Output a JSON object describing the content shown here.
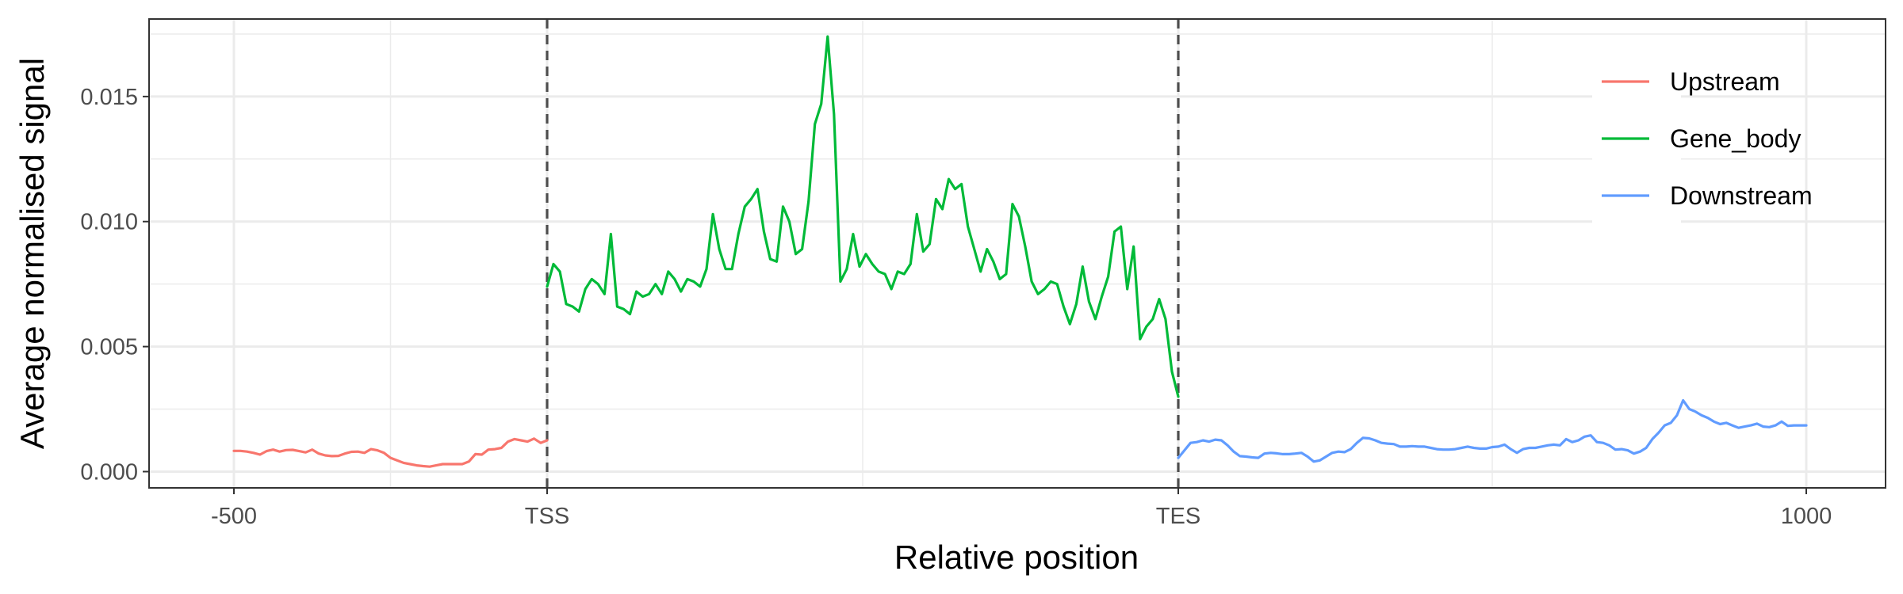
{
  "chart_data": {
    "type": "line",
    "title": "",
    "xlabel": "Relative position",
    "ylabel": "Average normalised signal",
    "x_ticks": [
      {
        "value": -500,
        "label": "-500"
      },
      {
        "value": 0,
        "label": "TSS"
      },
      {
        "value": 1,
        "label": "TES"
      },
      {
        "value": 1000,
        "label": "1000"
      }
    ],
    "y_ticks": [
      {
        "value": 0,
        "label": "0.000"
      },
      {
        "value": 0.005,
        "label": "0.005"
      },
      {
        "value": 0.01,
        "label": "0.010"
      },
      {
        "value": 0.015,
        "label": "0.015"
      }
    ],
    "ylim": [
      -0.00065,
      0.0181
    ],
    "grid": true,
    "legend_position": "top-right",
    "reference_lines": [
      {
        "label": "TSS",
        "style": "dashed"
      },
      {
        "label": "TES",
        "style": "dashed"
      }
    ],
    "series": [
      {
        "name": "Upstream",
        "color": "#F8766D",
        "segment": "upstream",
        "x_range": [
          -500,
          0
        ],
        "values": [
          0.00083,
          0.00083,
          0.0008,
          0.00075,
          0.00068,
          0.00082,
          0.00088,
          0.0008,
          0.00086,
          0.00087,
          0.00082,
          0.00077,
          0.00088,
          0.00072,
          0.00065,
          0.00062,
          0.00063,
          0.00072,
          0.00079,
          0.0008,
          0.00075,
          0.0009,
          0.00085,
          0.00075,
          0.00055,
          0.00045,
          0.00035,
          0.0003,
          0.00025,
          0.00022,
          0.0002,
          0.00025,
          0.0003,
          0.0003,
          0.0003,
          0.0003,
          0.0004,
          0.0007,
          0.00068,
          0.00088,
          0.0009,
          0.00095,
          0.0012,
          0.0013,
          0.00125,
          0.0012,
          0.00132,
          0.00115,
          0.00125
        ]
      },
      {
        "name": "Gene_body",
        "color": "#00BA38",
        "segment": "gene_body",
        "x_range": [
          0,
          1
        ],
        "values": [
          0.0074,
          0.0083,
          0.008,
          0.0067,
          0.0066,
          0.0064,
          0.0073,
          0.0077,
          0.0075,
          0.0071,
          0.0095,
          0.0066,
          0.0065,
          0.0063,
          0.0072,
          0.007,
          0.0071,
          0.0075,
          0.0071,
          0.008,
          0.0077,
          0.0072,
          0.0077,
          0.0076,
          0.0074,
          0.0081,
          0.0103,
          0.0089,
          0.0081,
          0.0081,
          0.0095,
          0.0106,
          0.0109,
          0.0113,
          0.0096,
          0.0085,
          0.0084,
          0.0106,
          0.01,
          0.0087,
          0.0089,
          0.0108,
          0.0139,
          0.0147,
          0.0174,
          0.0143,
          0.0076,
          0.0081,
          0.0095,
          0.0082,
          0.0087,
          0.0083,
          0.008,
          0.0079,
          0.0073,
          0.008,
          0.0079,
          0.0083,
          0.0103,
          0.0088,
          0.0091,
          0.0109,
          0.0105,
          0.0117,
          0.0113,
          0.0115,
          0.0098,
          0.0089,
          0.008,
          0.0089,
          0.0084,
          0.0077,
          0.0079,
          0.0107,
          0.0102,
          0.009,
          0.0076,
          0.0071,
          0.0073,
          0.0076,
          0.0075,
          0.0066,
          0.0059,
          0.0067,
          0.0082,
          0.0068,
          0.0061,
          0.007,
          0.0078,
          0.0096,
          0.0098,
          0.0073,
          0.009,
          0.0053,
          0.0058,
          0.0061,
          0.0069,
          0.0061,
          0.004,
          0.003
        ]
      },
      {
        "name": "Downstream",
        "color": "#619CFF",
        "segment": "downstream",
        "x_range": [
          1,
          1000
        ],
        "values": [
          0.00055,
          0.00085,
          0.00115,
          0.00118,
          0.00125,
          0.0012,
          0.00128,
          0.00125,
          0.00105,
          0.0008,
          0.00062,
          0.0006,
          0.00057,
          0.00055,
          0.00072,
          0.00075,
          0.00073,
          0.0007,
          0.0007,
          0.00072,
          0.00075,
          0.0006,
          0.0004,
          0.00045,
          0.0006,
          0.00075,
          0.0008,
          0.00078,
          0.0009,
          0.00115,
          0.00135,
          0.00133,
          0.00125,
          0.00115,
          0.00112,
          0.0011,
          0.001,
          0.001,
          0.00102,
          0.001,
          0.001,
          0.00095,
          0.0009,
          0.00088,
          0.00088,
          0.0009,
          0.00095,
          0.001,
          0.00095,
          0.00092,
          0.00092,
          0.00098,
          0.001,
          0.00108,
          0.0009,
          0.00075,
          0.0009,
          0.00095,
          0.00095,
          0.001,
          0.00105,
          0.00108,
          0.00105,
          0.0013,
          0.00118,
          0.00125,
          0.0014,
          0.00145,
          0.00118,
          0.00115,
          0.00105,
          0.00088,
          0.0009,
          0.00085,
          0.00072,
          0.0008,
          0.00095,
          0.0013,
          0.00155,
          0.00185,
          0.00195,
          0.00225,
          0.00285,
          0.0025,
          0.0024,
          0.00225,
          0.00215,
          0.002,
          0.0019,
          0.00195,
          0.00185,
          0.00175,
          0.0018,
          0.00185,
          0.00192,
          0.0018,
          0.00178,
          0.00185,
          0.002,
          0.00183,
          0.00185,
          0.00185,
          0.00185
        ]
      }
    ]
  }
}
